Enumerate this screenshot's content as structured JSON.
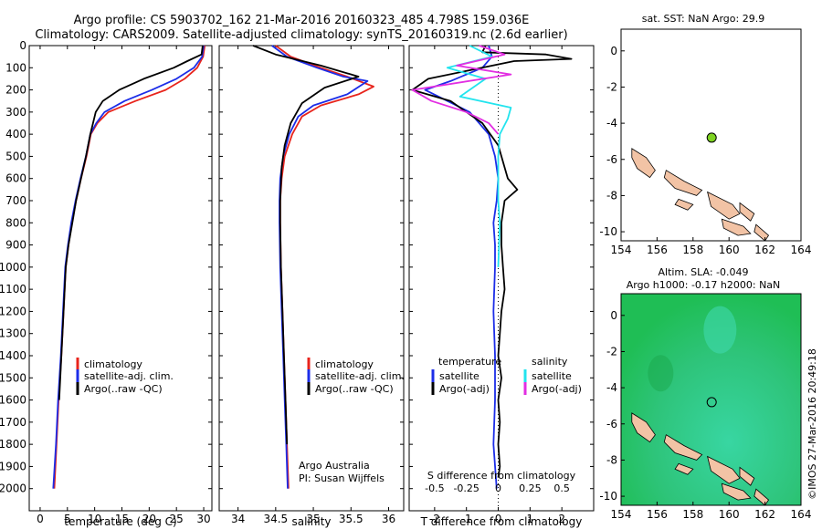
{
  "header": {
    "line1": "Argo profile: CS 5903702_162 21-Mar-2016 20160323_485 4.798S 159.036E",
    "line2": "Climatology: CARS2009. Satellite-adjusted climatology: synTS_20160319.nc (2.6d earlier)"
  },
  "sst_map": {
    "title": "sat. SST: NaN Argo: 29.9"
  },
  "sla_map": {
    "title1": "Altim. SLA: -0.049",
    "title2": "Argo h1000: -0.17 h2000: NaN"
  },
  "credit": {
    "text": "©IMOS 27-Mar-2016 20:49:18"
  },
  "temp_panel": {
    "xlabel": "temperature (deg C)",
    "legend": [
      "climatology",
      "satellite-adj. clim.",
      "Argo(..raw -QC)"
    ]
  },
  "sal_panel": {
    "xlabel": "salinity",
    "legend": [
      "climatology",
      "satellite-adj. clim.",
      "Argo(..raw -QC)"
    ],
    "note1": "Argo Australia",
    "note2": "PI: Susan Wijffels"
  },
  "diff_panel": {
    "xlabel": "T difference from climatology",
    "top_label": "S difference from climatology",
    "legend_temp_title": "temperature",
    "legend_sal_title": "salinity",
    "legend_temp": [
      "satellite",
      "Argo(-adj)"
    ],
    "legend_sal": [
      "satellite",
      "Argo(-adj)"
    ]
  },
  "colors": {
    "climatology": "#e8241c",
    "satellite": "#1c2de8",
    "argo": "#000000",
    "sal_satellite": "#22e4ee",
    "sal_argo": "#e22ee2",
    "land": "#f2c3a5",
    "ocean": "#1fbe55"
  },
  "chart_data": [
    {
      "type": "line",
      "xlabel": "temperature (deg C)",
      "xlim": [
        -2,
        31.5
      ],
      "ylim": [
        2100,
        0
      ],
      "xticks": [
        0,
        5,
        10,
        15,
        20,
        25,
        30
      ],
      "yticks": [
        0,
        100,
        200,
        300,
        400,
        500,
        600,
        700,
        800,
        900,
        1000,
        1100,
        1200,
        1300,
        1400,
        1500,
        1600,
        1700,
        1800,
        1900,
        2000
      ],
      "series": [
        {
          "name": "climatology",
          "points": [
            [
              30.2,
              0
            ],
            [
              29.9,
              50
            ],
            [
              28.8,
              100
            ],
            [
              26.5,
              150
            ],
            [
              23,
              200
            ],
            [
              17.5,
              250
            ],
            [
              12.5,
              300
            ],
            [
              10.5,
              350
            ],
            [
              9.3,
              400
            ],
            [
              8.5,
              500
            ],
            [
              7.5,
              600
            ],
            [
              6.6,
              700
            ],
            [
              5.8,
              800
            ],
            [
              5.2,
              900
            ],
            [
              4.7,
              1000
            ],
            [
              4.3,
              1200
            ],
            [
              3.9,
              1400
            ],
            [
              3.4,
              1600
            ],
            [
              3.0,
              1800
            ],
            [
              2.6,
              2000
            ]
          ]
        },
        {
          "name": "satellite-adj. clim.",
          "points": [
            [
              30.0,
              0
            ],
            [
              29.7,
              50
            ],
            [
              28.2,
              100
            ],
            [
              25,
              150
            ],
            [
              20.5,
              200
            ],
            [
              15.5,
              250
            ],
            [
              11.8,
              300
            ],
            [
              10.3,
              350
            ],
            [
              9.2,
              400
            ],
            [
              8.4,
              500
            ],
            [
              7.4,
              600
            ],
            [
              6.5,
              700
            ],
            [
              5.7,
              800
            ],
            [
              5.1,
              900
            ],
            [
              4.6,
              1000
            ],
            [
              4.2,
              1200
            ],
            [
              3.8,
              1400
            ],
            [
              3.3,
              1600
            ],
            [
              2.9,
              1800
            ],
            [
              2.4,
              2000
            ]
          ]
        },
        {
          "name": "Argo(..raw -QC)",
          "points": [
            [
              29.8,
              0
            ],
            [
              29.6,
              40
            ],
            [
              27,
              70
            ],
            [
              24.5,
              100
            ],
            [
              19,
              150
            ],
            [
              14.5,
              200
            ],
            [
              11.5,
              250
            ],
            [
              10.2,
              300
            ],
            [
              9.2,
              400
            ],
            [
              8.4,
              500
            ],
            [
              7.5,
              600
            ],
            [
              6.6,
              700
            ],
            [
              5.9,
              800
            ],
            [
              5.2,
              900
            ],
            [
              4.7,
              1000
            ],
            [
              4.3,
              1200
            ],
            [
              3.9,
              1400
            ],
            [
              3.5,
              1600
            ]
          ]
        }
      ]
    },
    {
      "type": "line",
      "xlabel": "salinity",
      "xlim": [
        33.75,
        36.2
      ],
      "ylim": [
        2100,
        0
      ],
      "xticks": [
        34,
        34.5,
        35,
        35.5,
        36
      ],
      "series": [
        {
          "name": "climatology",
          "points": [
            [
              34.5,
              0
            ],
            [
              34.7,
              50
            ],
            [
              35.1,
              100
            ],
            [
              35.45,
              140
            ],
            [
              35.8,
              185
            ],
            [
              35.6,
              220
            ],
            [
              35.1,
              270
            ],
            [
              34.85,
              320
            ],
            [
              34.72,
              400
            ],
            [
              34.62,
              500
            ],
            [
              34.58,
              600
            ],
            [
              34.56,
              700
            ],
            [
              34.56,
              800
            ],
            [
              34.57,
              1000
            ],
            [
              34.59,
              1200
            ],
            [
              34.61,
              1400
            ],
            [
              34.63,
              1600
            ],
            [
              34.65,
              1800
            ],
            [
              34.67,
              2000
            ]
          ]
        },
        {
          "name": "satellite-adj. clim.",
          "points": [
            [
              34.45,
              0
            ],
            [
              34.65,
              50
            ],
            [
              35.05,
              100
            ],
            [
              35.4,
              140
            ],
            [
              35.72,
              160
            ],
            [
              35.45,
              220
            ],
            [
              35.0,
              270
            ],
            [
              34.8,
              320
            ],
            [
              34.68,
              400
            ],
            [
              34.6,
              500
            ],
            [
              34.56,
              600
            ],
            [
              34.55,
              700
            ],
            [
              34.55,
              800
            ],
            [
              34.56,
              1000
            ],
            [
              34.58,
              1200
            ],
            [
              34.6,
              1400
            ],
            [
              34.62,
              1600
            ],
            [
              34.64,
              1800
            ],
            [
              34.66,
              2000
            ]
          ]
        },
        {
          "name": "Argo(..raw -QC)",
          "points": [
            [
              34.2,
              0
            ],
            [
              34.5,
              40
            ],
            [
              35.1,
              90
            ],
            [
              35.6,
              140
            ],
            [
              35.15,
              190
            ],
            [
              34.85,
              260
            ],
            [
              34.7,
              350
            ],
            [
              34.62,
              450
            ],
            [
              34.58,
              550
            ],
            [
              34.56,
              700
            ],
            [
              34.56,
              800
            ],
            [
              34.57,
              1000
            ],
            [
              34.59,
              1200
            ],
            [
              34.61,
              1400
            ],
            [
              34.63,
              1600
            ],
            [
              34.65,
              1800
            ]
          ]
        }
      ]
    },
    {
      "type": "line",
      "xlabel": "T difference from climatology",
      "top_label": "S difference from climatology",
      "xlim": [
        -2.8,
        3
      ],
      "ylim": [
        2100,
        0
      ],
      "xticks": [
        -2,
        -1,
        0,
        1,
        2
      ],
      "top_xticks": [
        "-0.5",
        "-0.25",
        "0",
        "0.25",
        "0.5"
      ],
      "series": [
        {
          "name": "temperature satellite",
          "points": [
            [
              -0.3,
              0
            ],
            [
              -0.2,
              50
            ],
            [
              -0.5,
              100
            ],
            [
              -1.5,
              160
            ],
            [
              -2.3,
              200
            ],
            [
              -1.6,
              250
            ],
            [
              -0.9,
              300
            ],
            [
              -0.3,
              400
            ],
            [
              -0.1,
              500
            ],
            [
              0,
              600
            ],
            [
              -0.05,
              700
            ],
            [
              -0.15,
              800
            ],
            [
              -0.1,
              900
            ],
            [
              -0.1,
              1000
            ],
            [
              -0.15,
              1200
            ],
            [
              -0.1,
              1400
            ],
            [
              -0.1,
              1600
            ],
            [
              -0.15,
              1800
            ],
            [
              -0.05,
              2000
            ]
          ]
        },
        {
          "name": "temperature Argo(-adj)",
          "points": [
            [
              -0.4,
              0
            ],
            [
              -0.5,
              30
            ],
            [
              1.5,
              40
            ],
            [
              2.3,
              60
            ],
            [
              0.5,
              70
            ],
            [
              -2.2,
              150
            ],
            [
              -2.7,
              200
            ],
            [
              -1.5,
              250
            ],
            [
              -0.5,
              350
            ],
            [
              0,
              450
            ],
            [
              0.1,
              500
            ],
            [
              0.3,
              600
            ],
            [
              0.6,
              650
            ],
            [
              0.2,
              700
            ],
            [
              0.1,
              800
            ],
            [
              0.1,
              900
            ],
            [
              0.15,
              1000
            ],
            [
              0.2,
              1100
            ],
            [
              0.1,
              1200
            ],
            [
              0.05,
              1300
            ],
            [
              0,
              1400
            ],
            [
              0.1,
              1500
            ],
            [
              0,
              1600
            ],
            [
              0.05,
              1700
            ],
            [
              0,
              1800
            ],
            [
              0.05,
              1900
            ],
            [
              0,
              1950
            ]
          ]
        },
        {
          "name": "salinity satellite",
          "points": [
            [
              -0.9,
              0
            ],
            [
              -0.2,
              50
            ],
            [
              -1.6,
              100
            ],
            [
              -0.4,
              150
            ],
            [
              -1.2,
              230
            ],
            [
              0.4,
              280
            ],
            [
              0.3,
              330
            ],
            [
              0.05,
              400
            ],
            [
              0,
              500
            ],
            [
              0,
              700
            ],
            [
              0.05,
              800
            ],
            [
              0,
              1000
            ]
          ]
        },
        {
          "name": "salinity Argo(-adj)",
          "points": [
            [
              -0.6,
              0
            ],
            [
              0.2,
              40
            ],
            [
              -1.3,
              90
            ],
            [
              0.4,
              130
            ],
            [
              -2.7,
              200
            ],
            [
              -2.1,
              250
            ],
            [
              -1.0,
              300
            ],
            [
              -0.3,
              350
            ],
            [
              0,
              400
            ]
          ]
        }
      ]
    },
    {
      "type": "scatter",
      "title": "sat. SST: NaN Argo: 29.9",
      "xlim": [
        154,
        164
      ],
      "ylim": [
        -10.5,
        1.2
      ],
      "xticks": [
        154,
        156,
        158,
        160,
        162,
        164
      ],
      "yticks": [
        0,
        -2,
        -4,
        -6,
        -8,
        -10
      ],
      "points": [
        {
          "lon": 159.036,
          "lat": -4.798
        }
      ]
    },
    {
      "type": "heatmap",
      "title": "Altim. SLA: -0.049",
      "subtitle": "Argo h1000: -0.17 h2000: NaN",
      "xlim": [
        154,
        164
      ],
      "ylim": [
        -10.5,
        1.2
      ],
      "xticks": [
        154,
        156,
        158,
        160,
        162,
        164
      ],
      "yticks": [
        0,
        -2,
        -4,
        -6,
        -8,
        -10
      ],
      "points": [
        {
          "lon": 159.036,
          "lat": -4.798
        }
      ]
    }
  ]
}
